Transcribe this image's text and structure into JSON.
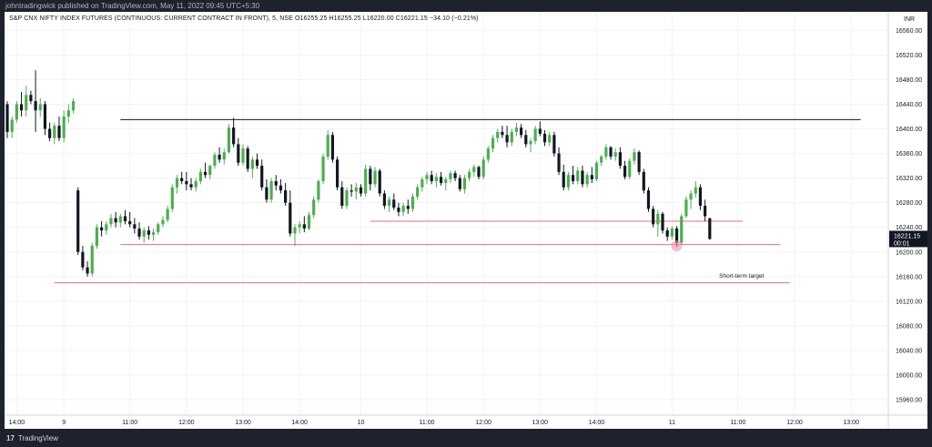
{
  "header": {
    "publisher_line": "johntradingwick published on TradingView.com, May 11, 2022 09:45 UTC+5:30"
  },
  "legend": {
    "text": "S&P CNX NIFTY INDEX FUTURES (CONTINUOUS: CURRENT CONTRACT IN FRONT), 5, NSE  O16255.25  H16255.25  L16220.00  C16221.15  −34.10 (−0.21%)"
  },
  "footer": {
    "logo": "17",
    "brand": "TradingView"
  },
  "chart_data": {
    "type": "candlestick",
    "currency_label": "INR",
    "y_ticks": [
      15960,
      16000,
      16040,
      16080,
      16120,
      16160,
      16200,
      16240,
      16280,
      16320,
      16360,
      16400,
      16440,
      16480,
      16520,
      16560
    ],
    "ylim": [
      15935,
      16590
    ],
    "x_tick_labels": [
      {
        "label": "14:00",
        "i": 2
      },
      {
        "label": "9",
        "i": 12
      },
      {
        "label": "11:00",
        "i": 26
      },
      {
        "label": "12:00",
        "i": 38
      },
      {
        "label": "13:00",
        "i": 50
      },
      {
        "label": "14:00",
        "i": 62
      },
      {
        "label": "10",
        "i": 75
      },
      {
        "label": "11:00",
        "i": 89
      },
      {
        "label": "12:00",
        "i": 101
      },
      {
        "label": "13:00",
        "i": 113
      },
      {
        "label": "14:00",
        "i": 125
      },
      {
        "label": "11",
        "i": 141
      },
      {
        "label": "11:00",
        "i": 155
      },
      {
        "label": "12:00",
        "i": 167
      },
      {
        "label": "13:00",
        "i": 179
      }
    ],
    "last_price": {
      "value": "16221.15",
      "countdown": "00:01",
      "y": 16221.15
    },
    "colors": {
      "up": "#26a69a",
      "down": "#131722",
      "up_fill": "#4caf50",
      "resistance": "#131722",
      "support": "#e57373",
      "last_price_bg": "#131722"
    },
    "horizontal_lines": [
      {
        "y": 16415,
        "i_start": 24,
        "i_end": 181,
        "color": "#131722"
      },
      {
        "y": 16250,
        "i_start": 77,
        "i_end": 156,
        "color": "#e57373"
      },
      {
        "y": 16212,
        "i_start": 24,
        "i_end": 164,
        "color": "#e57373"
      },
      {
        "y": 16150,
        "i_start": 10,
        "i_end": 166,
        "color": "#e57373"
      }
    ],
    "annotations": [
      {
        "text": "Short-term target",
        "i": 151,
        "y": 16158
      }
    ],
    "marker": {
      "i": 142,
      "y": 16210,
      "color": "#f48fb1"
    },
    "candles": [
      [
        0,
        16440,
        16445,
        16385,
        16395
      ],
      [
        1,
        16395,
        16420,
        16385,
        16415
      ],
      [
        2,
        16415,
        16445,
        16410,
        16440
      ],
      [
        3,
        16440,
        16460,
        16420,
        16430
      ],
      [
        4,
        16430,
        16470,
        16420,
        16455
      ],
      [
        5,
        16455,
        16462,
        16440,
        16445
      ],
      [
        6,
        16445,
        16495,
        16395,
        16430
      ],
      [
        7,
        16430,
        16450,
        16420,
        16440
      ],
      [
        8,
        16440,
        16445,
        16390,
        16400
      ],
      [
        9,
        16400,
        16410,
        16380,
        16385
      ],
      [
        10,
        16385,
        16410,
        16375,
        16405
      ],
      [
        11,
        16405,
        16420,
        16380,
        16385
      ],
      [
        12,
        16385,
        16430,
        16378,
        16420
      ],
      [
        13,
        16420,
        16440,
        16410,
        16430
      ],
      [
        14,
        16430,
        16450,
        16425,
        16445
      ],
      [
        15,
        16300,
        16305,
        16195,
        16200
      ],
      [
        16,
        16200,
        16210,
        16170,
        16175
      ],
      [
        17,
        16175,
        16185,
        16160,
        16165
      ],
      [
        18,
        16165,
        16215,
        16160,
        16210
      ],
      [
        19,
        16210,
        16245,
        16205,
        16240
      ],
      [
        20,
        16240,
        16250,
        16225,
        16235
      ],
      [
        21,
        16235,
        16250,
        16228,
        16245
      ],
      [
        22,
        16245,
        16262,
        16240,
        16255
      ],
      [
        23,
        16255,
        16265,
        16240,
        16248
      ],
      [
        24,
        16248,
        16262,
        16240,
        16258
      ],
      [
        25,
        16258,
        16268,
        16245,
        16250
      ],
      [
        26,
        16250,
        16265,
        16240,
        16245
      ],
      [
        27,
        16245,
        16255,
        16230,
        16238
      ],
      [
        28,
        16238,
        16248,
        16220,
        16225
      ],
      [
        29,
        16225,
        16240,
        16215,
        16235
      ],
      [
        30,
        16235,
        16242,
        16220,
        16228
      ],
      [
        31,
        16228,
        16238,
        16218,
        16232
      ],
      [
        32,
        16232,
        16248,
        16228,
        16245
      ],
      [
        33,
        16245,
        16258,
        16240,
        16252
      ],
      [
        34,
        16252,
        16275,
        16248,
        16270
      ],
      [
        35,
        16270,
        16310,
        16265,
        16305
      ],
      [
        36,
        16305,
        16325,
        16295,
        16320
      ],
      [
        37,
        16320,
        16330,
        16310,
        16315
      ],
      [
        38,
        16315,
        16330,
        16300,
        16310
      ],
      [
        39,
        16310,
        16320,
        16300,
        16305
      ],
      [
        40,
        16305,
        16320,
        16298,
        16315
      ],
      [
        41,
        16315,
        16335,
        16310,
        16330
      ],
      [
        42,
        16330,
        16345,
        16320,
        16325
      ],
      [
        43,
        16325,
        16342,
        16318,
        16340
      ],
      [
        44,
        16340,
        16362,
        16335,
        16358
      ],
      [
        45,
        16358,
        16370,
        16345,
        16350
      ],
      [
        46,
        16350,
        16368,
        16342,
        16362
      ],
      [
        47,
        16362,
        16408,
        16360,
        16402
      ],
      [
        48,
        16402,
        16418,
        16370,
        16375
      ],
      [
        49,
        16375,
        16385,
        16340,
        16345
      ],
      [
        50,
        16345,
        16375,
        16340,
        16368
      ],
      [
        51,
        16368,
        16372,
        16330,
        16335
      ],
      [
        52,
        16335,
        16355,
        16320,
        16350
      ],
      [
        53,
        16350,
        16360,
        16335,
        16340
      ],
      [
        54,
        16340,
        16350,
        16300,
        16305
      ],
      [
        55,
        16305,
        16318,
        16280,
        16285
      ],
      [
        56,
        16285,
        16320,
        16280,
        16315
      ],
      [
        57,
        16315,
        16325,
        16300,
        16308
      ],
      [
        58,
        16308,
        16318,
        16295,
        16300
      ],
      [
        59,
        16300,
        16312,
        16275,
        16280
      ],
      [
        60,
        16280,
        16300,
        16225,
        16230
      ],
      [
        61,
        16230,
        16245,
        16210,
        16240
      ],
      [
        62,
        16240,
        16250,
        16230,
        16245
      ],
      [
        63,
        16245,
        16258,
        16232,
        16238
      ],
      [
        64,
        16238,
        16265,
        16235,
        16260
      ],
      [
        65,
        16260,
        16290,
        16255,
        16285
      ],
      [
        66,
        16285,
        16318,
        16280,
        16315
      ],
      [
        67,
        16315,
        16360,
        16310,
        16355
      ],
      [
        68,
        16355,
        16398,
        16350,
        16390
      ],
      [
        69,
        16390,
        16395,
        16345,
        16350
      ],
      [
        70,
        16350,
        16355,
        16300,
        16305
      ],
      [
        71,
        16305,
        16315,
        16270,
        16275
      ],
      [
        72,
        16275,
        16305,
        16270,
        16300
      ],
      [
        73,
        16300,
        16310,
        16290,
        16298
      ],
      [
        74,
        16298,
        16312,
        16285,
        16305
      ],
      [
        75,
        16305,
        16310,
        16290,
        16295
      ],
      [
        76,
        16295,
        16342,
        16290,
        16335
      ],
      [
        77,
        16335,
        16340,
        16300,
        16310
      ],
      [
        78,
        16310,
        16338,
        16305,
        16332
      ],
      [
        79,
        16332,
        16335,
        16290,
        16295
      ],
      [
        80,
        16295,
        16300,
        16270,
        16275
      ],
      [
        81,
        16275,
        16290,
        16265,
        16285
      ],
      [
        82,
        16285,
        16295,
        16268,
        16272
      ],
      [
        83,
        16272,
        16280,
        16258,
        16265
      ],
      [
        84,
        16265,
        16280,
        16258,
        16275
      ],
      [
        85,
        16275,
        16285,
        16262,
        16270
      ],
      [
        86,
        16270,
        16295,
        16265,
        16290
      ],
      [
        87,
        16290,
        16310,
        16285,
        16305
      ],
      [
        88,
        16305,
        16322,
        16298,
        16318
      ],
      [
        89,
        16318,
        16330,
        16310,
        16325
      ],
      [
        90,
        16325,
        16332,
        16310,
        16315
      ],
      [
        91,
        16315,
        16328,
        16305,
        16322
      ],
      [
        92,
        16322,
        16330,
        16308,
        16312
      ],
      [
        93,
        16312,
        16322,
        16300,
        16318
      ],
      [
        94,
        16318,
        16332,
        16312,
        16328
      ],
      [
        95,
        16328,
        16332,
        16315,
        16320
      ],
      [
        96,
        16320,
        16325,
        16298,
        16302
      ],
      [
        97,
        16302,
        16325,
        16295,
        16320
      ],
      [
        98,
        16320,
        16335,
        16315,
        16330
      ],
      [
        99,
        16330,
        16342,
        16322,
        16338
      ],
      [
        100,
        16338,
        16340,
        16318,
        16322
      ],
      [
        101,
        16322,
        16355,
        16318,
        16350
      ],
      [
        102,
        16350,
        16372,
        16345,
        16368
      ],
      [
        103,
        16368,
        16390,
        16362,
        16385
      ],
      [
        104,
        16385,
        16400,
        16378,
        16395
      ],
      [
        105,
        16395,
        16405,
        16385,
        16390
      ],
      [
        106,
        16390,
        16405,
        16370,
        16378
      ],
      [
        107,
        16378,
        16400,
        16372,
        16395
      ],
      [
        108,
        16395,
        16410,
        16388,
        16402
      ],
      [
        109,
        16402,
        16408,
        16385,
        16390
      ],
      [
        110,
        16390,
        16398,
        16370,
        16375
      ],
      [
        111,
        16375,
        16385,
        16362,
        16380
      ],
      [
        112,
        16380,
        16405,
        16375,
        16400
      ],
      [
        113,
        16400,
        16412,
        16388,
        16392
      ],
      [
        114,
        16392,
        16398,
        16372,
        16378
      ],
      [
        115,
        16378,
        16395,
        16372,
        16390
      ],
      [
        116,
        16390,
        16395,
        16355,
        16360
      ],
      [
        117,
        16360,
        16370,
        16325,
        16330
      ],
      [
        118,
        16330,
        16342,
        16300,
        16305
      ],
      [
        119,
        16305,
        16330,
        16300,
        16325
      ],
      [
        120,
        16325,
        16340,
        16310,
        16315
      ],
      [
        121,
        16315,
        16338,
        16310,
        16332
      ],
      [
        122,
        16332,
        16340,
        16305,
        16310
      ],
      [
        123,
        16310,
        16330,
        16305,
        16325
      ],
      [
        124,
        16325,
        16338,
        16312,
        16318
      ],
      [
        125,
        16318,
        16348,
        16315,
        16345
      ],
      [
        126,
        16345,
        16358,
        16340,
        16355
      ],
      [
        127,
        16355,
        16375,
        16350,
        16370
      ],
      [
        128,
        16370,
        16372,
        16350,
        16355
      ],
      [
        129,
        16355,
        16368,
        16348,
        16362
      ],
      [
        130,
        16362,
        16370,
        16335,
        16340
      ],
      [
        131,
        16340,
        16348,
        16318,
        16322
      ],
      [
        132,
        16322,
        16352,
        16318,
        16348
      ],
      [
        133,
        16348,
        16368,
        16342,
        16362
      ],
      [
        134,
        16362,
        16365,
        16325,
        16330
      ],
      [
        135,
        16330,
        16335,
        16295,
        16300
      ],
      [
        136,
        16300,
        16305,
        16265,
        16270
      ],
      [
        137,
        16270,
        16275,
        16240,
        16245
      ],
      [
        138,
        16245,
        16268,
        16225,
        16262
      ],
      [
        139,
        16262,
        16265,
        16230,
        16235
      ],
      [
        140,
        16235,
        16240,
        16218,
        16225
      ],
      [
        141,
        16225,
        16242,
        16220,
        16238
      ],
      [
        142,
        16238,
        16242,
        16208,
        16215
      ],
      [
        143,
        16215,
        16262,
        16212,
        16258
      ],
      [
        144,
        16258,
        16290,
        16255,
        16285
      ],
      [
        145,
        16285,
        16300,
        16270,
        16295
      ],
      [
        146,
        16295,
        16315,
        16288,
        16305
      ],
      [
        147,
        16305,
        16310,
        16268,
        16275
      ],
      [
        148,
        16275,
        16285,
        16250,
        16258
      ],
      [
        149,
        16255,
        16255,
        16220,
        16221
      ]
    ]
  }
}
